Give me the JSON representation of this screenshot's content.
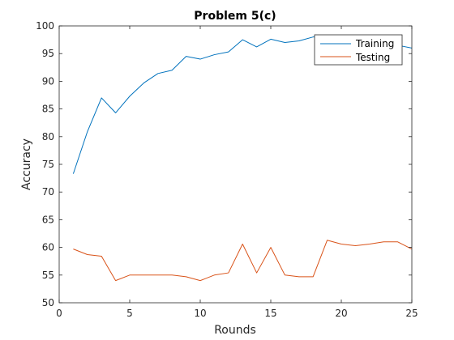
{
  "chart_data": {
    "type": "line",
    "title": "Problem 5(c)",
    "xlabel": "Rounds",
    "ylabel": "Accuracy",
    "xlim": [
      0,
      25
    ],
    "ylim": [
      50,
      100
    ],
    "xticks": [
      0,
      5,
      10,
      15,
      20,
      25
    ],
    "yticks": [
      50,
      55,
      60,
      65,
      70,
      75,
      80,
      85,
      90,
      95,
      100
    ],
    "grid": false,
    "legend_position": "top-right",
    "x": [
      1,
      2,
      3,
      4,
      5,
      6,
      7,
      8,
      9,
      10,
      11,
      12,
      13,
      14,
      15,
      16,
      17,
      18,
      19,
      20,
      21,
      22,
      23,
      24,
      25
    ],
    "series": [
      {
        "name": "Training",
        "color": "#0072BD",
        "values": [
          73.3,
          80.9,
          87.0,
          84.3,
          87.3,
          89.7,
          91.4,
          92.0,
          94.5,
          94.0,
          94.8,
          95.3,
          97.5,
          96.2,
          97.6,
          97.0,
          97.3,
          98.0,
          98.0,
          97.2,
          97.5,
          97.5,
          97.0,
          96.5,
          96.0
        ]
      },
      {
        "name": "Testing",
        "color": "#D95319",
        "values": [
          59.7,
          58.7,
          58.4,
          54.0,
          55.0,
          55.0,
          55.0,
          55.0,
          54.7,
          54.0,
          55.0,
          55.4,
          60.6,
          55.4,
          60.0,
          55.0,
          54.7,
          54.7,
          61.3,
          60.6,
          60.3,
          60.6,
          61.0,
          61.0,
          59.7
        ]
      }
    ]
  }
}
